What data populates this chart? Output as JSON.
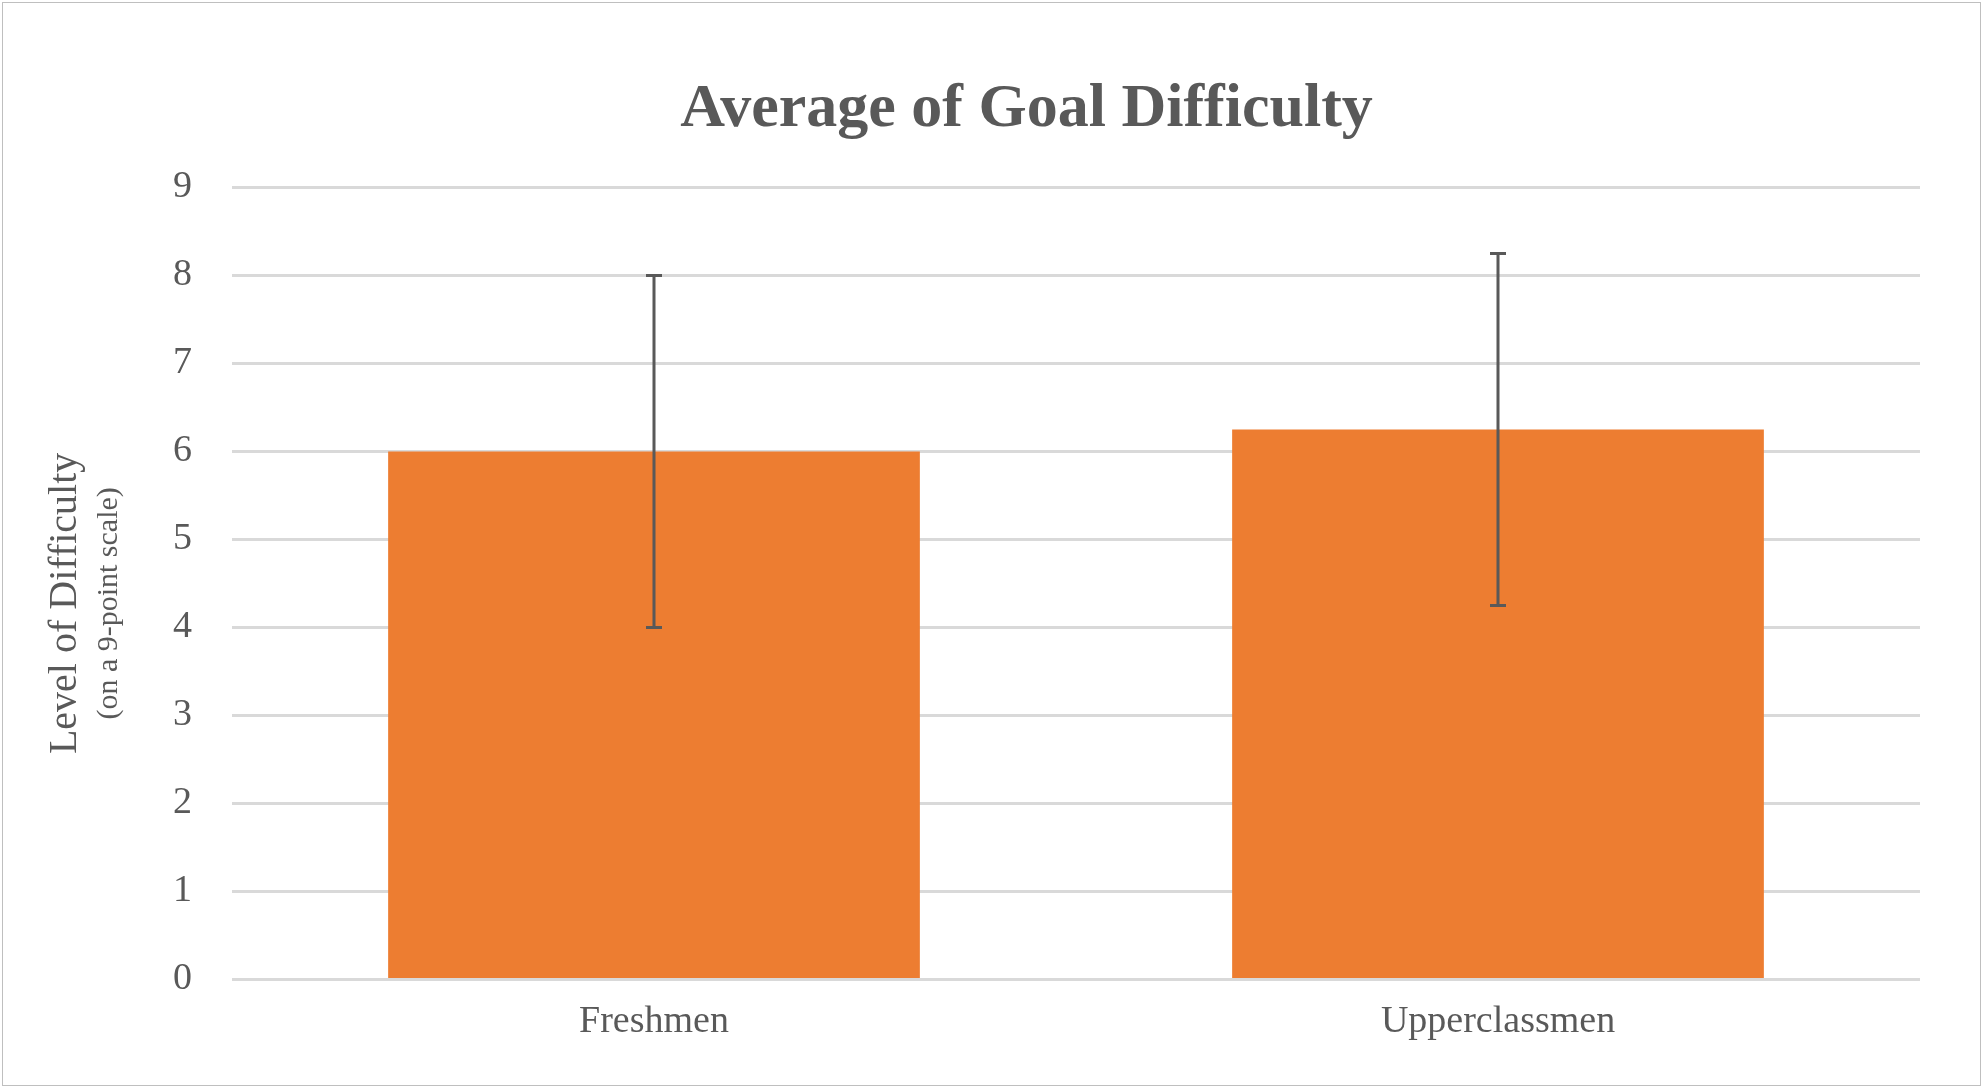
{
  "chart_data": {
    "type": "bar",
    "title": "Average of Goal Difficulty",
    "ylabel": "Level of Difficulty\n(on a 9-point scale)",
    "categories": [
      "Freshmen",
      "Upperclassmen"
    ],
    "values": [
      6,
      6.25
    ],
    "color": "#ed7d31",
    "errors": [
      2,
      2
    ],
    "ylim": [
      0,
      9
    ],
    "yticks": [
      0,
      1,
      2,
      3,
      4,
      5,
      6,
      7,
      8,
      9
    ],
    "grid": "y",
    "legend": false
  }
}
